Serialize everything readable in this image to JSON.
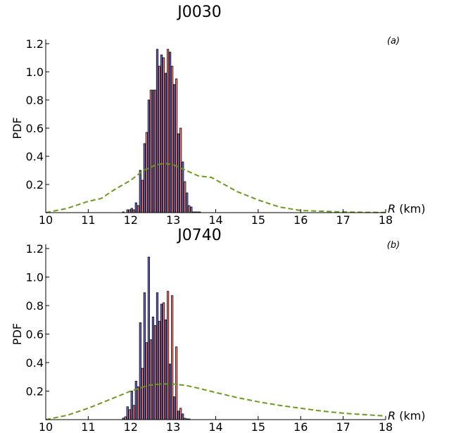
{
  "figure": {
    "colors": {
      "series_a": "#6b6bea",
      "series_b": "#ee8c8c",
      "prior": "#6b9a1f"
    }
  },
  "chart_data": [
    {
      "type": "bar",
      "title": "J0030",
      "panel_label": "(a)",
      "xlabel_var": "R",
      "xlabel_unit": " (km)",
      "ylabel": "PDF",
      "xlim": [
        10,
        18
      ],
      "ylim": [
        0,
        1.2
      ],
      "xticks": [
        "10",
        "11",
        "12",
        "13",
        "14",
        "15",
        "16",
        "17",
        "18"
      ],
      "yticks": [
        "0.2",
        "0.4",
        "0.6",
        "0.8",
        "1.0",
        "1.2"
      ],
      "grid": false,
      "bin_width": 0.1,
      "series": [
        {
          "x": [
            11.85,
            11.95,
            12.05,
            12.15,
            12.25,
            12.35,
            12.45,
            12.55,
            12.65,
            12.75,
            12.85,
            12.95,
            13.05,
            13.15,
            13.25,
            13.35,
            13.45,
            13.55,
            13.65,
            13.75,
            13.85
          ],
          "values": [
            0.005,
            0.02,
            0.03,
            0.07,
            0.3,
            0.49,
            0.8,
            0.87,
            1.16,
            1.12,
            0.99,
            1.14,
            0.91,
            0.56,
            0.36,
            0.14,
            0.04,
            0.005,
            0.005,
            0.0,
            0.0
          ]
        },
        {
          "x": [
            11.85,
            11.95,
            12.05,
            12.15,
            12.25,
            12.35,
            12.45,
            12.55,
            12.65,
            12.75,
            12.85,
            12.95,
            13.05,
            13.15,
            13.25,
            13.35,
            13.45,
            13.55,
            13.65,
            13.75,
            13.85
          ],
          "values": [
            0.0,
            0.02,
            0.02,
            0.05,
            0.23,
            0.57,
            0.87,
            0.87,
            1.04,
            1.1,
            1.16,
            1.04,
            0.95,
            0.6,
            0.22,
            0.05,
            0.005,
            0.005,
            0.0,
            0.0,
            0.0
          ]
        }
      ],
      "prior_curve": {
        "style": "dashed",
        "x": [
          10.0,
          10.5,
          11.0,
          11.3,
          11.6,
          12.0,
          12.3,
          12.6,
          12.8,
          13.0,
          13.3,
          13.6,
          13.9,
          14.2,
          14.5,
          15.0,
          15.5,
          16.0,
          16.5,
          17.0,
          17.5,
          18.0
        ],
        "values": [
          0.0,
          0.03,
          0.08,
          0.1,
          0.16,
          0.23,
          0.3,
          0.34,
          0.35,
          0.34,
          0.3,
          0.26,
          0.25,
          0.2,
          0.15,
          0.09,
          0.04,
          0.015,
          0.01,
          0.005,
          0.002,
          0.001
        ]
      }
    },
    {
      "type": "bar",
      "title": "J0740",
      "panel_label": "(b)",
      "xlabel_var": "R",
      "xlabel_unit": " (km)",
      "ylabel": "PDF",
      "xlim": [
        10,
        18
      ],
      "ylim": [
        0,
        1.2
      ],
      "xticks": [
        "10",
        "11",
        "12",
        "13",
        "14",
        "15",
        "16",
        "17",
        "18"
      ],
      "yticks": [
        "0.2",
        "0.4",
        "0.6",
        "0.8",
        "1.0",
        "1.2"
      ],
      "grid": false,
      "bin_width": 0.1,
      "series": [
        {
          "x": [
            11.85,
            11.95,
            12.05,
            12.15,
            12.25,
            12.35,
            12.45,
            12.55,
            12.65,
            12.75,
            12.85,
            12.95,
            13.05,
            13.15,
            13.25,
            13.35,
            13.45,
            13.55,
            13.65,
            13.75,
            13.85,
            13.95,
            14.05,
            14.15
          ],
          "values": [
            0.01,
            0.09,
            0.2,
            0.27,
            0.68,
            0.89,
            1.14,
            0.72,
            0.89,
            0.81,
            0.7,
            0.39,
            0.16,
            0.06,
            0.04,
            0.005,
            0.0,
            0.0,
            0.0,
            0.0,
            0.0,
            0.0,
            0.0,
            0.0
          ]
        },
        {
          "x": [
            11.85,
            11.95,
            12.05,
            12.15,
            12.25,
            12.35,
            12.45,
            12.55,
            12.65,
            12.75,
            12.85,
            12.95,
            13.05,
            13.15,
            13.25,
            13.35,
            13.45,
            13.55,
            13.65,
            13.75,
            13.85,
            13.95,
            14.05,
            14.15
          ],
          "values": [
            0.02,
            0.07,
            0.1,
            0.23,
            0.36,
            0.54,
            0.56,
            0.66,
            0.69,
            0.82,
            0.9,
            0.87,
            0.51,
            0.08,
            0.01,
            0.005,
            0.0,
            0.0,
            0.0,
            0.0,
            0.0,
            0.0,
            0.0,
            0.0
          ]
        }
      ],
      "prior_curve": {
        "style": "dashed",
        "x": [
          10.0,
          10.5,
          11.0,
          11.5,
          12.0,
          12.4,
          12.7,
          13.0,
          13.3,
          13.6,
          14.0,
          14.5,
          15.0,
          15.5,
          16.0,
          16.5,
          17.0,
          17.5,
          18.0
        ],
        "values": [
          0.0,
          0.03,
          0.08,
          0.14,
          0.2,
          0.24,
          0.25,
          0.25,
          0.24,
          0.22,
          0.19,
          0.155,
          0.125,
          0.1,
          0.08,
          0.06,
          0.045,
          0.035,
          0.025
        ]
      }
    }
  ]
}
